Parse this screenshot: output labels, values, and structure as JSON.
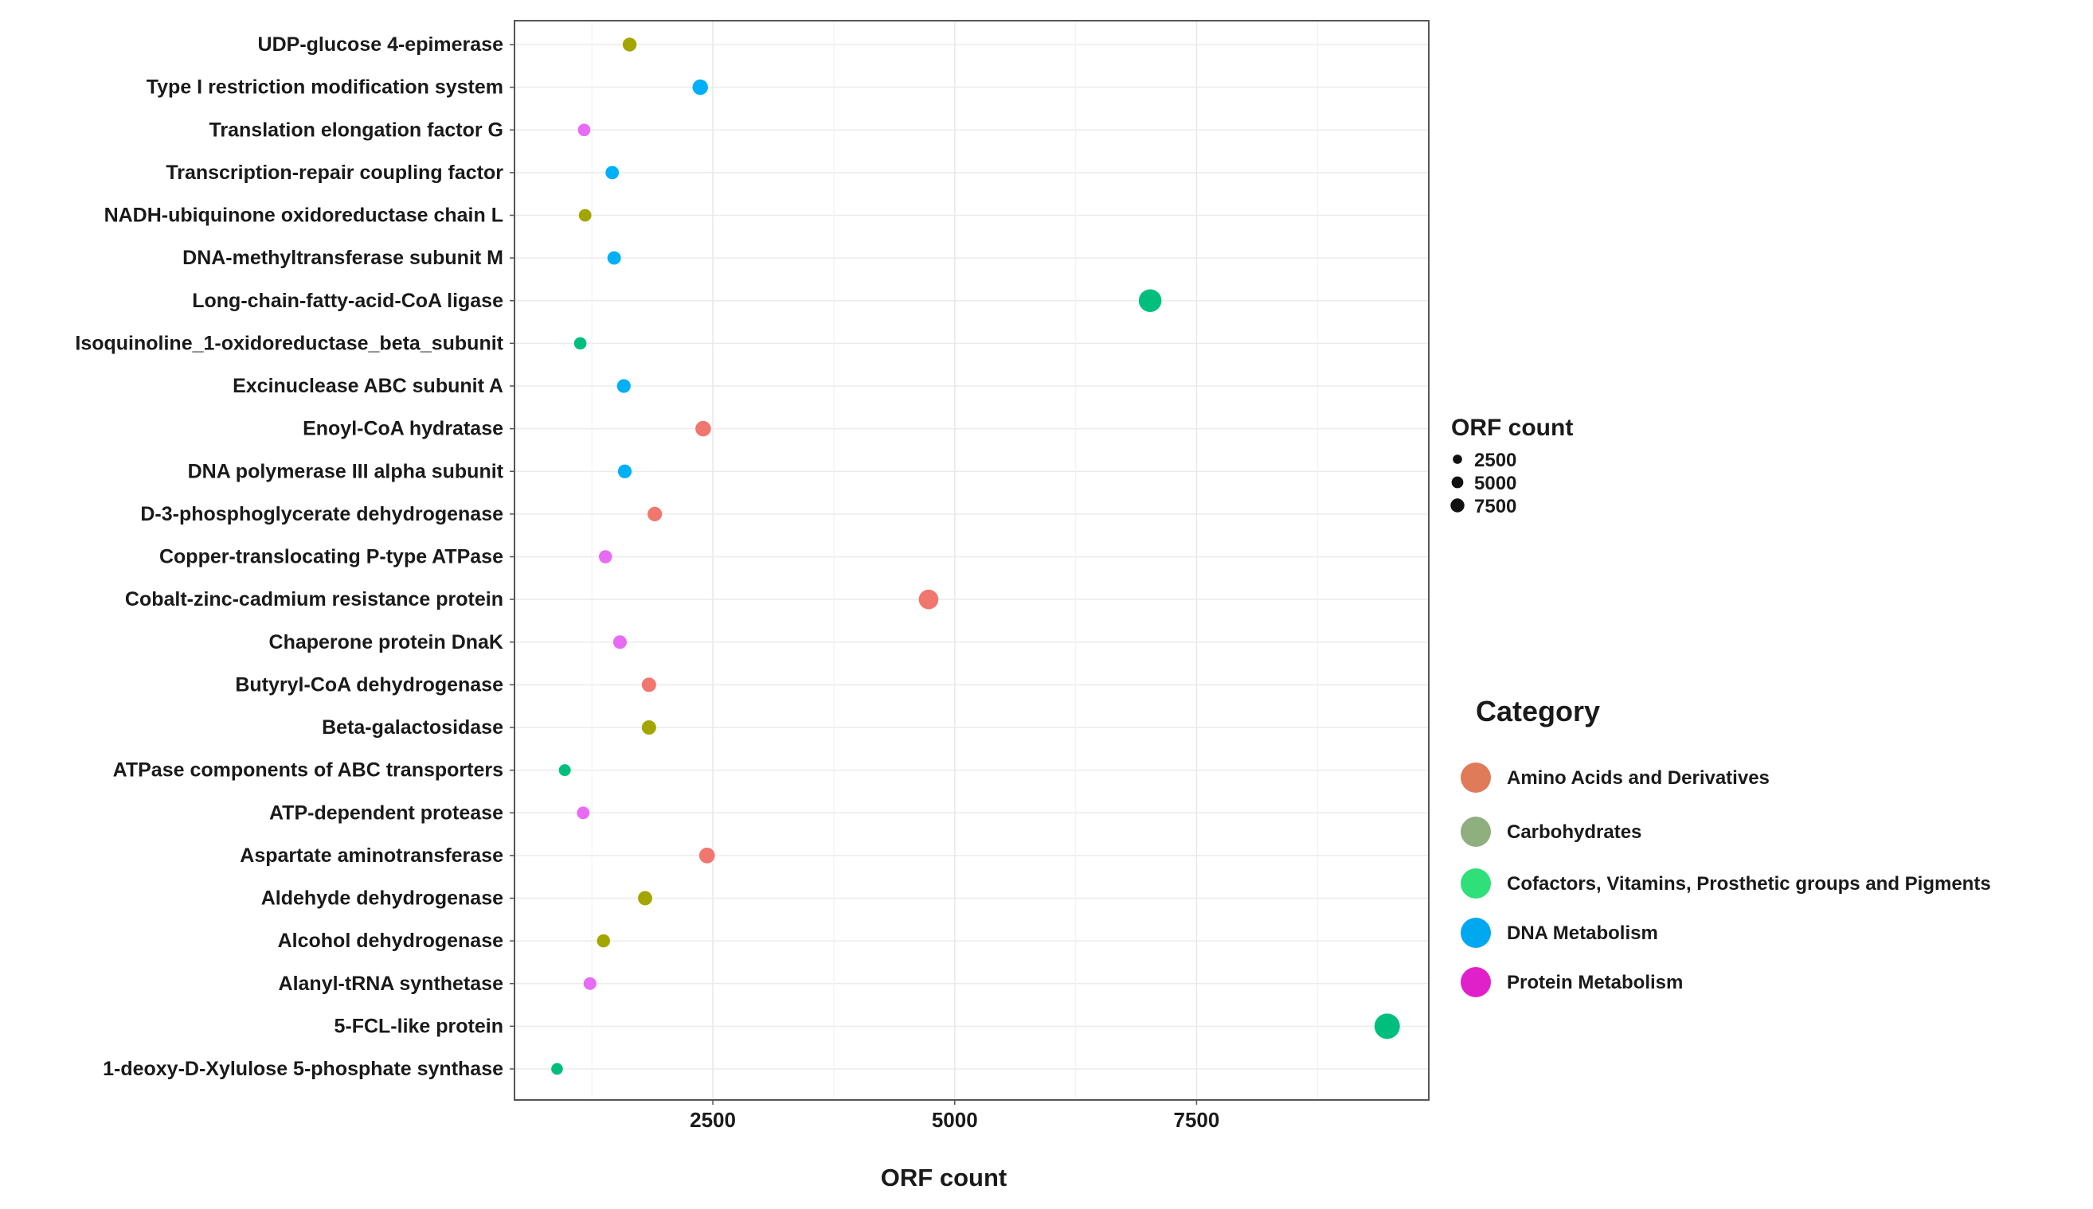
{
  "chart_data": {
    "type": "scatter",
    "title": "",
    "xlabel": "ORF count",
    "ylabel": "",
    "xlim": [
      450,
      9900
    ],
    "x_ticks": [
      2500,
      5000,
      7500
    ],
    "x_tick_labels": [
      "2500",
      "5000",
      "7500"
    ],
    "grid": true,
    "categories": [
      "1-deoxy-D-Xylulose 5-phosphate synthase",
      "5-FCL-like protein",
      "Alanyl-tRNA synthetase",
      "Alcohol dehydrogenase",
      "Aldehyde dehydrogenase",
      "Aspartate aminotransferase",
      "ATP-dependent protease",
      "ATPase components of ABC transporters",
      "Beta-galactosidase",
      "Butyryl-CoA dehydrogenase",
      "Chaperone protein DnaK",
      "Cobalt-zinc-cadmium resistance protein",
      "Copper-translocating P-type ATPase",
      "D-3-phosphoglycerate dehydrogenase",
      "DNA polymerase III alpha subunit",
      "Enoyl-CoA hydratase",
      "Excinuclease ABC subunit A",
      "Isoquinoline_1-oxidoreductase_beta_subunit",
      "Long-chain-fatty-acid-CoA ligase",
      "DNA-methyltransferase subunit M",
      "NADH-ubiquinone oxidoreductase chain L",
      "Transcription-repair coupling factor",
      "Translation elongation factor G",
      "Type I restriction modification system",
      "UDP-glucose 4-epimerase"
    ],
    "points": [
      {
        "label": "1-deoxy-D-Xylulose 5-phosphate synthase",
        "x": 890,
        "category": "Cofactors, Vitamins, Prosthetic groups and Pigments"
      },
      {
        "label": "5-FCL-like protein",
        "x": 9470,
        "category": "Cofactors, Vitamins, Prosthetic groups and Pigments"
      },
      {
        "label": "Alanyl-tRNA synthetase",
        "x": 1230,
        "category": "Protein Metabolism"
      },
      {
        "label": "Alcohol dehydrogenase",
        "x": 1370,
        "category": "Carbohydrates"
      },
      {
        "label": "Aldehyde dehydrogenase",
        "x": 1800,
        "category": "Carbohydrates"
      },
      {
        "label": "Aspartate aminotransferase",
        "x": 2440,
        "category": "Amino Acids and Derivatives"
      },
      {
        "label": "ATP-dependent protease",
        "x": 1160,
        "category": "Protein Metabolism"
      },
      {
        "label": "ATPase components of ABC transporters",
        "x": 970,
        "category": "Cofactors, Vitamins, Prosthetic groups and Pigments"
      },
      {
        "label": "Beta-galactosidase",
        "x": 1840,
        "category": "Carbohydrates"
      },
      {
        "label": "Butyryl-CoA dehydrogenase",
        "x": 1840,
        "category": "Amino Acids and Derivatives"
      },
      {
        "label": "Chaperone protein DnaK",
        "x": 1540,
        "category": "Protein Metabolism"
      },
      {
        "label": "Cobalt-zinc-cadmium resistance protein",
        "x": 4730,
        "category": "Amino Acids and Derivatives"
      },
      {
        "label": "Copper-translocating P-type ATPase",
        "x": 1390,
        "category": "Protein Metabolism"
      },
      {
        "label": "D-3-phosphoglycerate dehydrogenase",
        "x": 1900,
        "category": "Amino Acids and Derivatives"
      },
      {
        "label": "DNA polymerase III alpha subunit",
        "x": 1590,
        "category": "DNA Metabolism"
      },
      {
        "label": "Enoyl-CoA hydratase",
        "x": 2400,
        "category": "Amino Acids and Derivatives"
      },
      {
        "label": "Excinuclease ABC subunit A",
        "x": 1580,
        "category": "DNA Metabolism"
      },
      {
        "label": "Isoquinoline_1-oxidoreductase_beta_subunit",
        "x": 1130,
        "category": "Cofactors, Vitamins, Prosthetic groups and Pigments"
      },
      {
        "label": "Long-chain-fatty-acid-CoA ligase",
        "x": 7020,
        "category": "Cofactors, Vitamins, Prosthetic groups and Pigments"
      },
      {
        "label": "DNA-methyltransferase subunit M",
        "x": 1480,
        "category": "DNA Metabolism"
      },
      {
        "label": "NADH-ubiquinone oxidoreductase chain L",
        "x": 1180,
        "category": "Carbohydrates"
      },
      {
        "label": "Transcription-repair coupling factor",
        "x": 1460,
        "category": "DNA Metabolism"
      },
      {
        "label": "Translation elongation factor G",
        "x": 1170,
        "category": "Protein Metabolism"
      },
      {
        "label": "Type I restriction modification system",
        "x": 2370,
        "category": "DNA Metabolism"
      },
      {
        "label": "UDP-glucose 4-epimerase",
        "x": 1640,
        "category": "Carbohydrates"
      }
    ],
    "size_legend": {
      "title": "ORF count",
      "values": [
        2500,
        5000,
        7500
      ],
      "labels": [
        "2500",
        "5000",
        "7500"
      ]
    },
    "color_legend": {
      "title": "Category",
      "entries": [
        {
          "name": "Amino Acids and Derivatives",
          "swatch": "#E07B5A",
          "point_color": "#F0766E"
        },
        {
          "name": "Carbohydrates",
          "swatch": "#8FAF7F",
          "point_color": "#A3A500"
        },
        {
          "name": "Cofactors, Vitamins, Prosthetic groups and Pigments",
          "swatch": "#2FE07A",
          "point_color": "#00BF7D"
        },
        {
          "name": "DNA Metabolism",
          "swatch": "#00A8F0",
          "point_color": "#00B0F6"
        },
        {
          "name": "Protein Metabolism",
          "swatch": "#E020C8",
          "point_color": "#E76BF3"
        }
      ]
    }
  }
}
